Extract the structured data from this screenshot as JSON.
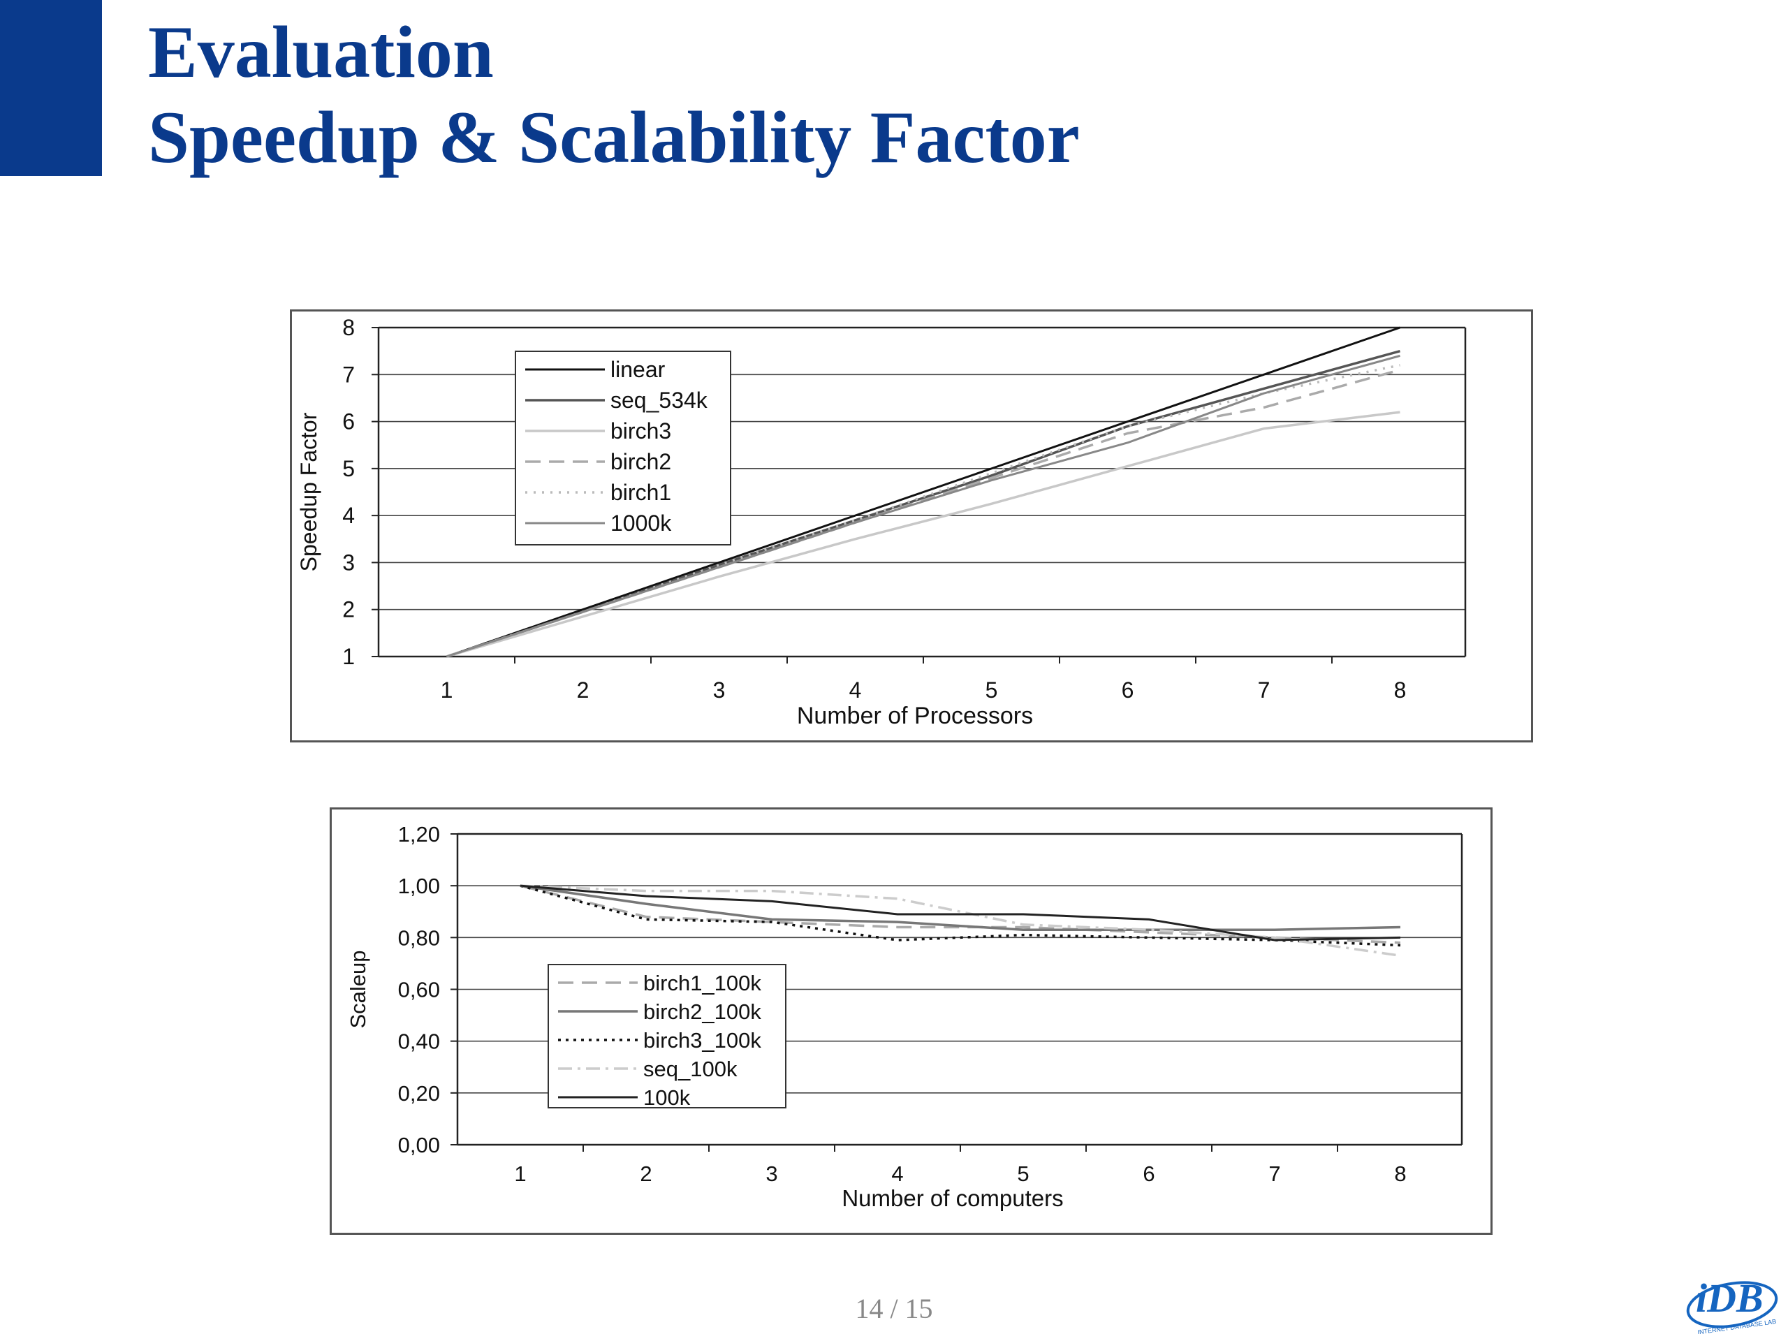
{
  "slide": {
    "title_line1": "Evaluation",
    "title_line2": "Speedup & Scalability Factor",
    "page_number": "14 / 15",
    "logo_text": "iDB",
    "logo_subtext": "INTERNET DATABASE LAB",
    "colors": {
      "accent": "#0a3a8c",
      "logo": "#1565c0"
    }
  },
  "chart_data": [
    {
      "type": "line",
      "title": "",
      "xlabel": "Number of Processors",
      "ylabel": "Speedup Factor",
      "x": [
        1,
        2,
        3,
        4,
        5,
        6,
        7,
        8
      ],
      "ylim": [
        1,
        8
      ],
      "yticks": [
        "1",
        "2",
        "3",
        "4",
        "5",
        "6",
        "7",
        "8"
      ],
      "grid": true,
      "legend": "top-left",
      "series": [
        {
          "name": "linear",
          "values": [
            1,
            2,
            3,
            4,
            5,
            6,
            7,
            8
          ],
          "color": "#111111",
          "dash": "",
          "width": 3
        },
        {
          "name": "seq_534k",
          "values": [
            1,
            1.95,
            2.95,
            3.9,
            4.85,
            5.9,
            6.7,
            7.5
          ],
          "color": "#555555",
          "dash": "",
          "width": 3.5
        },
        {
          "name": "birch3",
          "values": [
            1,
            1.85,
            2.7,
            3.5,
            4.25,
            5.05,
            5.85,
            6.2
          ],
          "color": "#c8c8c8",
          "dash": "",
          "width": 3.5
        },
        {
          "name": "birch2",
          "values": [
            1,
            1.95,
            2.9,
            3.85,
            4.8,
            5.75,
            6.3,
            7.1
          ],
          "color": "#aaaaaa",
          "dash": "22,12",
          "width": 3.5
        },
        {
          "name": "birch1",
          "values": [
            1,
            1.95,
            2.95,
            3.9,
            4.9,
            5.9,
            6.6,
            7.2
          ],
          "color": "#bbbbbb",
          "dash": "3,9",
          "width": 3.5
        },
        {
          "name": "1000k",
          "values": [
            1,
            1.95,
            2.9,
            3.85,
            4.75,
            5.55,
            6.6,
            7.4
          ],
          "color": "#888888",
          "dash": "",
          "width": 3
        }
      ]
    },
    {
      "type": "line",
      "title": "",
      "xlabel": "Number of computers",
      "ylabel": "Scaleup",
      "x": [
        1,
        2,
        3,
        4,
        5,
        6,
        7,
        8
      ],
      "ylim": [
        0,
        1.2
      ],
      "yticks": [
        "0,00",
        "0,20",
        "0,40",
        "0,60",
        "0,80",
        "1,00",
        "1,20"
      ],
      "grid": true,
      "legend": "bottom-left",
      "series": [
        {
          "name": "birch1_100k",
          "values": [
            1.0,
            0.88,
            0.86,
            0.84,
            0.84,
            0.82,
            0.8,
            0.78
          ],
          "color": "#aaaaaa",
          "dash": "22,12",
          "width": 3.5
        },
        {
          "name": "birch2_100k",
          "values": [
            1.0,
            0.93,
            0.87,
            0.86,
            0.83,
            0.83,
            0.83,
            0.84
          ],
          "color": "#777777",
          "dash": "",
          "width": 3.5
        },
        {
          "name": "birch3_100k",
          "values": [
            1.0,
            0.87,
            0.86,
            0.79,
            0.81,
            0.8,
            0.79,
            0.77
          ],
          "color": "#111111",
          "dash": "4,7",
          "width": 3.5
        },
        {
          "name": "seq_100k",
          "values": [
            1.0,
            0.98,
            0.98,
            0.95,
            0.85,
            0.83,
            0.8,
            0.73
          ],
          "color": "#cccccc",
          "dash": "20,8,4,8",
          "width": 3.5
        },
        {
          "name": "100k",
          "values": [
            1.0,
            0.96,
            0.94,
            0.89,
            0.89,
            0.87,
            0.79,
            0.8
          ],
          "color": "#222222",
          "dash": "",
          "width": 3
        }
      ]
    }
  ]
}
